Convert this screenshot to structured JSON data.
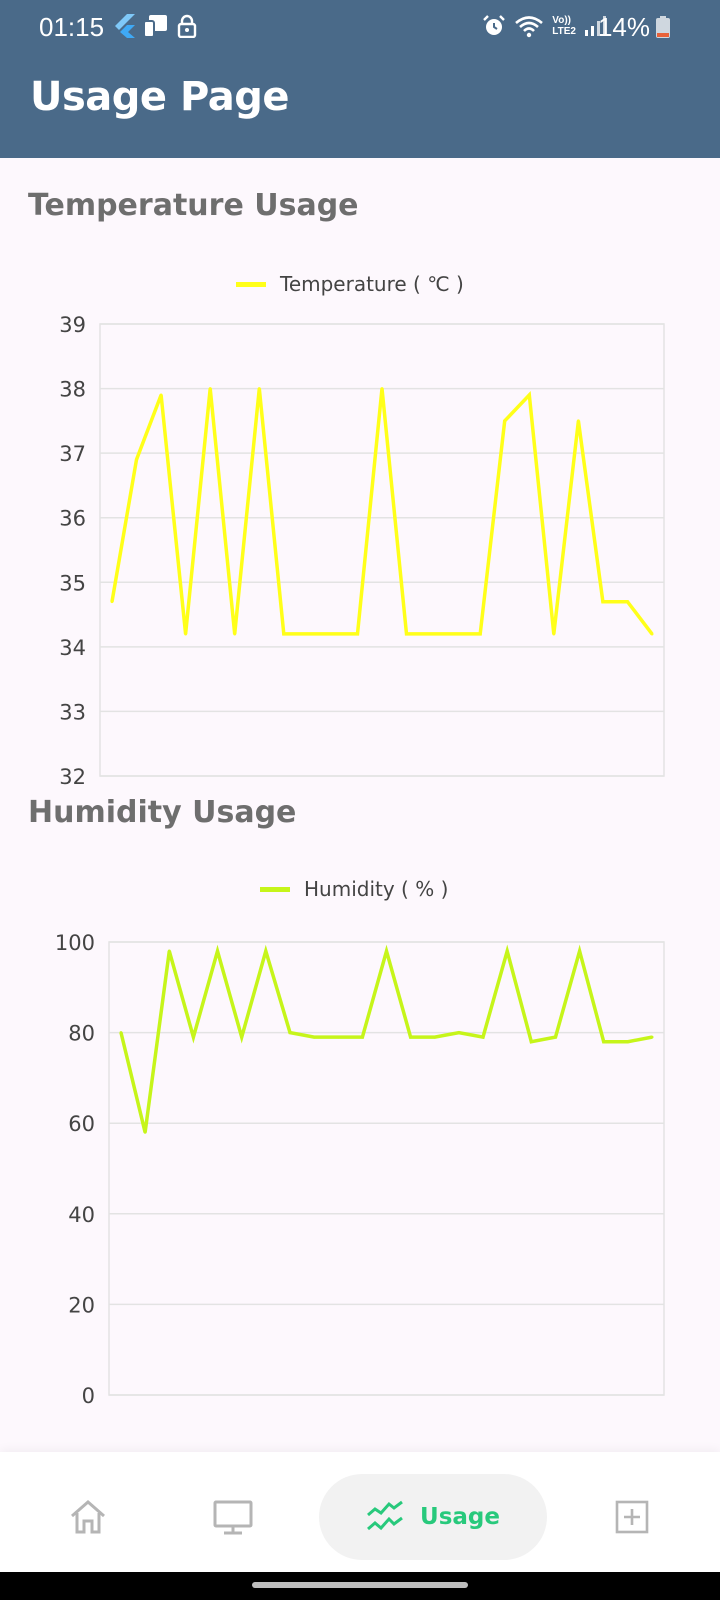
{
  "status_bar": {
    "time": "01:15",
    "battery": "14%",
    "network_label_top": "Vo))",
    "network_label_bottom": "LTE2"
  },
  "app_bar": {
    "title": "Usage Page"
  },
  "temperature": {
    "title": "Temperature Usage",
    "legend": "Temperature ( ℃ )",
    "color": "#ffff19"
  },
  "humidity": {
    "title": "Humidity Usage",
    "legend": "Humidity ( % )",
    "color": "#c6f51a"
  },
  "chart_data": [
    {
      "type": "line",
      "series": [
        {
          "name": "Temperature ( ℃ )",
          "values": [
            34.7,
            36.9,
            37.9,
            34.2,
            38,
            34.2,
            38,
            34.2,
            34.2,
            34.2,
            34.2,
            38,
            34.2,
            34.2,
            34.2,
            34.2,
            37.5,
            37.9,
            34.2,
            37.5,
            34.7,
            34.7,
            34.2
          ]
        }
      ],
      "ylim": [
        32,
        39
      ],
      "yticks": [
        "39",
        "38",
        "37",
        "36",
        "35",
        "34",
        "33",
        "32"
      ],
      "grid": true,
      "legend_position": "top-center"
    },
    {
      "type": "line",
      "series": [
        {
          "name": "Humidity ( % )",
          "values": [
            80,
            58,
            98,
            79,
            98,
            79,
            98,
            80,
            79,
            79,
            79,
            98,
            79,
            79,
            80,
            79,
            98,
            78,
            79,
            98,
            78,
            78,
            79
          ]
        }
      ],
      "ylim": [
        0,
        100
      ],
      "yticks": [
        "100",
        "80",
        "60",
        "40",
        "20",
        "0"
      ],
      "grid": true,
      "legend_position": "top-center"
    }
  ],
  "bottom_nav": {
    "items": [
      {
        "icon": "home-icon"
      },
      {
        "icon": "monitor-icon"
      },
      {
        "icon": "usage-chart-icon",
        "label": "Usage",
        "active": true
      },
      {
        "icon": "add-box-icon"
      }
    ],
    "active_color": "#28c97c"
  }
}
